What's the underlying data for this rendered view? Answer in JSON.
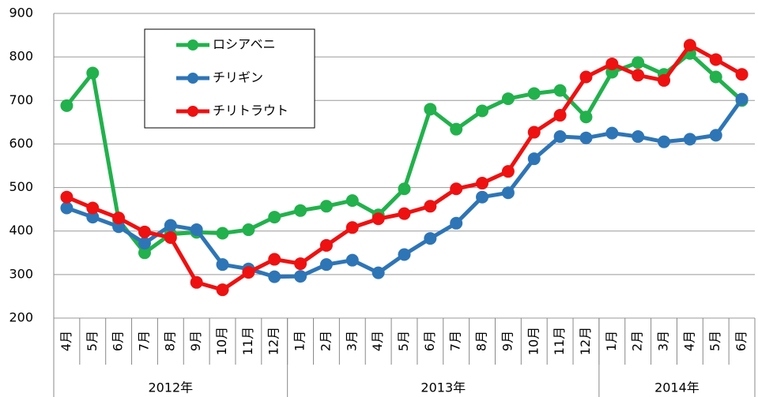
{
  "chart_data": {
    "type": "line",
    "categories": [
      "4月",
      "5月",
      "6月",
      "7月",
      "8月",
      "9月",
      "10月",
      "11月",
      "12月",
      "1月",
      "2月",
      "3月",
      "4月",
      "5月",
      "6月",
      "7月",
      "8月",
      "9月",
      "10月",
      "11月",
      "12月",
      "1月",
      "2月",
      "3月",
      "4月",
      "5月",
      "6月"
    ],
    "years": [
      "2012年",
      "2013年",
      "2014年"
    ],
    "series": [
      {
        "name": "ロシアベニ",
        "color": "#22b14c",
        "values": [
          688,
          763,
          425,
          350,
          393,
          397,
          395,
          403,
          432,
          447,
          457,
          470,
          437,
          497,
          680,
          634,
          676,
          704,
          716,
          723,
          662,
          765,
          787,
          760,
          808,
          754,
          700
        ]
      },
      {
        "name": "チリギン",
        "color": "#2e75b6",
        "values": [
          453,
          432,
          410,
          372,
          413,
          403,
          323,
          313,
          295,
          296,
          323,
          333,
          304,
          346,
          383,
          418,
          478,
          488,
          566,
          617,
          614,
          625,
          617,
          605,
          611,
          620,
          703
        ]
      },
      {
        "name": "チリトラウト",
        "color": "#ee1111",
        "values": [
          478,
          453,
          430,
          398,
          385,
          282,
          265,
          305,
          335,
          325,
          367,
          408,
          428,
          440,
          457,
          497,
          510,
          537,
          627,
          666,
          754,
          784,
          758,
          746,
          827,
          794,
          760
        ]
      }
    ],
    "ylim": [
      200,
      900
    ],
    "yticks": [
      200,
      300,
      400,
      500,
      600,
      700,
      800,
      900
    ],
    "grid": true,
    "legend": "upper left"
  }
}
